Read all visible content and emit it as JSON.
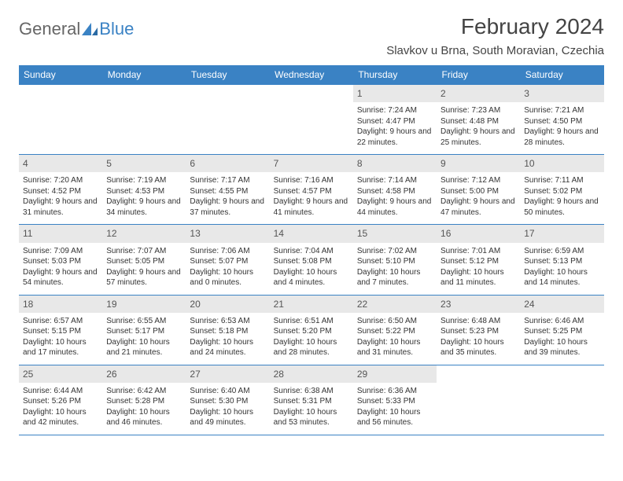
{
  "logo": {
    "text1": "General",
    "text2": "Blue"
  },
  "title": "February 2024",
  "location": "Slavkov u Brna, South Moravian, Czechia",
  "colors": {
    "header_bg": "#3a82c4",
    "header_text": "#ffffff",
    "daynum_bg": "#e8e8e8",
    "border": "#3a82c4",
    "text": "#333333"
  },
  "day_headers": [
    "Sunday",
    "Monday",
    "Tuesday",
    "Wednesday",
    "Thursday",
    "Friday",
    "Saturday"
  ],
  "weeks": [
    [
      null,
      null,
      null,
      null,
      {
        "n": "1",
        "sr": "7:24 AM",
        "ss": "4:47 PM",
        "dl": "9 hours and 22 minutes."
      },
      {
        "n": "2",
        "sr": "7:23 AM",
        "ss": "4:48 PM",
        "dl": "9 hours and 25 minutes."
      },
      {
        "n": "3",
        "sr": "7:21 AM",
        "ss": "4:50 PM",
        "dl": "9 hours and 28 minutes."
      }
    ],
    [
      {
        "n": "4",
        "sr": "7:20 AM",
        "ss": "4:52 PM",
        "dl": "9 hours and 31 minutes."
      },
      {
        "n": "5",
        "sr": "7:19 AM",
        "ss": "4:53 PM",
        "dl": "9 hours and 34 minutes."
      },
      {
        "n": "6",
        "sr": "7:17 AM",
        "ss": "4:55 PM",
        "dl": "9 hours and 37 minutes."
      },
      {
        "n": "7",
        "sr": "7:16 AM",
        "ss": "4:57 PM",
        "dl": "9 hours and 41 minutes."
      },
      {
        "n": "8",
        "sr": "7:14 AM",
        "ss": "4:58 PM",
        "dl": "9 hours and 44 minutes."
      },
      {
        "n": "9",
        "sr": "7:12 AM",
        "ss": "5:00 PM",
        "dl": "9 hours and 47 minutes."
      },
      {
        "n": "10",
        "sr": "7:11 AM",
        "ss": "5:02 PM",
        "dl": "9 hours and 50 minutes."
      }
    ],
    [
      {
        "n": "11",
        "sr": "7:09 AM",
        "ss": "5:03 PM",
        "dl": "9 hours and 54 minutes."
      },
      {
        "n": "12",
        "sr": "7:07 AM",
        "ss": "5:05 PM",
        "dl": "9 hours and 57 minutes."
      },
      {
        "n": "13",
        "sr": "7:06 AM",
        "ss": "5:07 PM",
        "dl": "10 hours and 0 minutes."
      },
      {
        "n": "14",
        "sr": "7:04 AM",
        "ss": "5:08 PM",
        "dl": "10 hours and 4 minutes."
      },
      {
        "n": "15",
        "sr": "7:02 AM",
        "ss": "5:10 PM",
        "dl": "10 hours and 7 minutes."
      },
      {
        "n": "16",
        "sr": "7:01 AM",
        "ss": "5:12 PM",
        "dl": "10 hours and 11 minutes."
      },
      {
        "n": "17",
        "sr": "6:59 AM",
        "ss": "5:13 PM",
        "dl": "10 hours and 14 minutes."
      }
    ],
    [
      {
        "n": "18",
        "sr": "6:57 AM",
        "ss": "5:15 PM",
        "dl": "10 hours and 17 minutes."
      },
      {
        "n": "19",
        "sr": "6:55 AM",
        "ss": "5:17 PM",
        "dl": "10 hours and 21 minutes."
      },
      {
        "n": "20",
        "sr": "6:53 AM",
        "ss": "5:18 PM",
        "dl": "10 hours and 24 minutes."
      },
      {
        "n": "21",
        "sr": "6:51 AM",
        "ss": "5:20 PM",
        "dl": "10 hours and 28 minutes."
      },
      {
        "n": "22",
        "sr": "6:50 AM",
        "ss": "5:22 PM",
        "dl": "10 hours and 31 minutes."
      },
      {
        "n": "23",
        "sr": "6:48 AM",
        "ss": "5:23 PM",
        "dl": "10 hours and 35 minutes."
      },
      {
        "n": "24",
        "sr": "6:46 AM",
        "ss": "5:25 PM",
        "dl": "10 hours and 39 minutes."
      }
    ],
    [
      {
        "n": "25",
        "sr": "6:44 AM",
        "ss": "5:26 PM",
        "dl": "10 hours and 42 minutes."
      },
      {
        "n": "26",
        "sr": "6:42 AM",
        "ss": "5:28 PM",
        "dl": "10 hours and 46 minutes."
      },
      {
        "n": "27",
        "sr": "6:40 AM",
        "ss": "5:30 PM",
        "dl": "10 hours and 49 minutes."
      },
      {
        "n": "28",
        "sr": "6:38 AM",
        "ss": "5:31 PM",
        "dl": "10 hours and 53 minutes."
      },
      {
        "n": "29",
        "sr": "6:36 AM",
        "ss": "5:33 PM",
        "dl": "10 hours and 56 minutes."
      },
      null,
      null
    ]
  ],
  "labels": {
    "sunrise": "Sunrise: ",
    "sunset": "Sunset: ",
    "daylight": "Daylight: "
  }
}
